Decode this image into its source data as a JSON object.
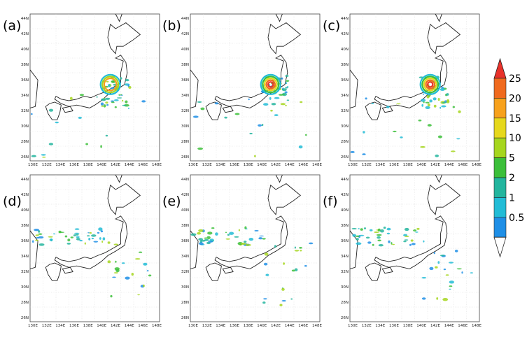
{
  "panels": [
    {
      "id": "a",
      "label": "(a)"
    },
    {
      "id": "b",
      "label": "(b)"
    },
    {
      "id": "c",
      "label": "(c)"
    },
    {
      "id": "d",
      "label": "(d)"
    },
    {
      "id": "e",
      "label": "(e)"
    },
    {
      "id": "f",
      "label": "(f)"
    }
  ],
  "axes": {
    "lon_labels": [
      "130E",
      "132E",
      "134E",
      "136E",
      "138E",
      "140E",
      "142E",
      "144E",
      "146E",
      "148E"
    ],
    "lat_labels": [
      "44N",
      "42N",
      "40N",
      "38N",
      "36N",
      "34N",
      "32N",
      "30N",
      "28N",
      "26N"
    ]
  },
  "colorbar": {
    "labels": [
      "25",
      "20",
      "15",
      "10",
      "5",
      "2",
      "1",
      "0.5"
    ],
    "colors": [
      "#e8322a",
      "#f06a1e",
      "#f7a11c",
      "#e6d81c",
      "#a6d61e",
      "#3cbf3a",
      "#23b59e",
      "#22bcd6",
      "#1f8fe6",
      "#ffffff"
    ]
  }
}
